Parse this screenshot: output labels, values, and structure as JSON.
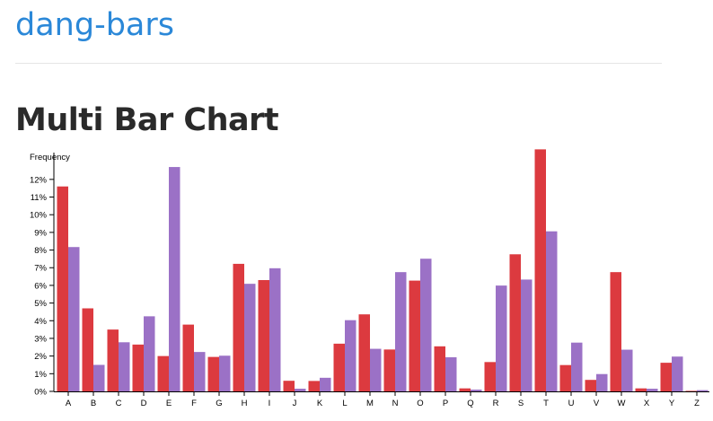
{
  "header": {
    "site_title": "dang-bars"
  },
  "page": {
    "heading": "Multi Bar Chart"
  },
  "chart_data": {
    "type": "bar",
    "ylabel": "Frequency",
    "ylim": [
      0,
      0.14
    ],
    "y_ticks": [
      0,
      0.01,
      0.02,
      0.03,
      0.04,
      0.05,
      0.06,
      0.07,
      0.08,
      0.09,
      0.1,
      0.11,
      0.12
    ],
    "y_tick_labels": [
      "0%",
      "1%",
      "2%",
      "3%",
      "4%",
      "5%",
      "6%",
      "7%",
      "8%",
      "9%",
      "10%",
      "11%",
      "12%"
    ],
    "categories": [
      "A",
      "B",
      "C",
      "D",
      "E",
      "F",
      "G",
      "H",
      "I",
      "J",
      "K",
      "L",
      "M",
      "N",
      "O",
      "P",
      "Q",
      "R",
      "S",
      "T",
      "U",
      "V",
      "W",
      "X",
      "Y",
      "Z"
    ],
    "series": [
      {
        "color": "#dc3a3f",
        "values": [
          0.116,
          0.047,
          0.035,
          0.0265,
          0.02,
          0.0378,
          0.0195,
          0.0722,
          0.063,
          0.006,
          0.0059,
          0.027,
          0.0436,
          0.0237,
          0.0627,
          0.0255,
          0.0017,
          0.0166,
          0.0776,
          0.137,
          0.0149,
          0.0065,
          0.0675,
          0.0017,
          0.0162,
          0.0003
        ]
      },
      {
        "color": "#9b71c6",
        "values": [
          0.0817,
          0.015,
          0.0278,
          0.0425,
          0.127,
          0.0223,
          0.0202,
          0.0609,
          0.0697,
          0.0015,
          0.0077,
          0.0403,
          0.0241,
          0.0675,
          0.0751,
          0.0193,
          0.001,
          0.0599,
          0.0633,
          0.0906,
          0.0276,
          0.0098,
          0.0236,
          0.0015,
          0.0197,
          0.0007
        ]
      }
    ],
    "grid": false,
    "legend": "none"
  }
}
